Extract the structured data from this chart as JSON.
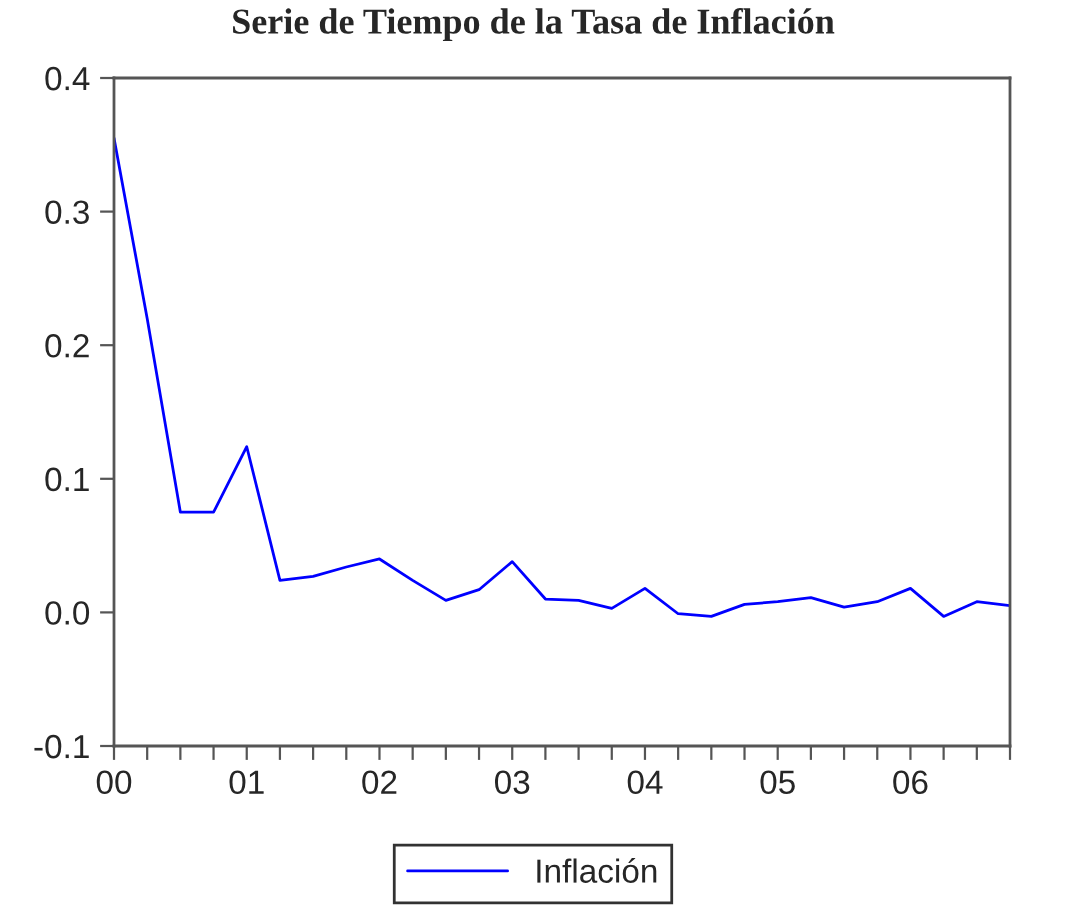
{
  "chart_data": {
    "type": "line",
    "title": "Serie de Tiempo de la Tasa de Inflación",
    "x": [
      0,
      0.25,
      0.5,
      0.75,
      1,
      1.25,
      1.5,
      1.75,
      2,
      2.25,
      2.5,
      2.75,
      3,
      3.25,
      3.5,
      3.75,
      4,
      4.25,
      4.5,
      4.75,
      5,
      5.25,
      5.5,
      5.75,
      6,
      6.25,
      6.5,
      6.75
    ],
    "series": [
      {
        "name": "Inflación",
        "color": "#0000ff",
        "values": [
          0.355,
          0.22,
          0.075,
          0.075,
          0.124,
          0.024,
          0.027,
          0.034,
          0.04,
          0.024,
          0.009,
          0.017,
          0.038,
          0.01,
          0.009,
          0.003,
          0.018,
          -0.001,
          -0.003,
          0.006,
          0.008,
          0.011,
          0.004,
          0.008,
          0.018,
          -0.003,
          0.008,
          0.005
        ]
      }
    ],
    "xlim": [
      0,
      6.75
    ],
    "xticks": [
      {
        "value": 0,
        "label": "00"
      },
      {
        "value": 0.25,
        "label": null
      },
      {
        "value": 0.5,
        "label": null
      },
      {
        "value": 0.75,
        "label": null
      },
      {
        "value": 1,
        "label": "01"
      },
      {
        "value": 1.25,
        "label": null
      },
      {
        "value": 1.5,
        "label": null
      },
      {
        "value": 1.75,
        "label": null
      },
      {
        "value": 2,
        "label": "02"
      },
      {
        "value": 2.25,
        "label": null
      },
      {
        "value": 2.5,
        "label": null
      },
      {
        "value": 2.75,
        "label": null
      },
      {
        "value": 3,
        "label": "03"
      },
      {
        "value": 3.25,
        "label": null
      },
      {
        "value": 3.5,
        "label": null
      },
      {
        "value": 3.75,
        "label": null
      },
      {
        "value": 4,
        "label": "04"
      },
      {
        "value": 4.25,
        "label": null
      },
      {
        "value": 4.5,
        "label": null
      },
      {
        "value": 4.75,
        "label": null
      },
      {
        "value": 5,
        "label": "05"
      },
      {
        "value": 5.25,
        "label": null
      },
      {
        "value": 5.5,
        "label": null
      },
      {
        "value": 5.75,
        "label": null
      },
      {
        "value": 6,
        "label": "06"
      },
      {
        "value": 6.25,
        "label": null
      },
      {
        "value": 6.5,
        "label": null
      },
      {
        "value": 6.75,
        "label": null
      }
    ],
    "ylim": [
      -0.1,
      0.4
    ],
    "yticks": [
      {
        "value": -0.1,
        "label": "-0.1"
      },
      {
        "value": 0.0,
        "label": "0.0"
      },
      {
        "value": 0.1,
        "label": "0.1"
      },
      {
        "value": 0.2,
        "label": "0.2"
      },
      {
        "value": 0.3,
        "label": "0.3"
      },
      {
        "value": 0.4,
        "label": "0.4"
      }
    ],
    "grid": false,
    "legend": "bottom",
    "line_style": "solid",
    "marker": "none"
  }
}
